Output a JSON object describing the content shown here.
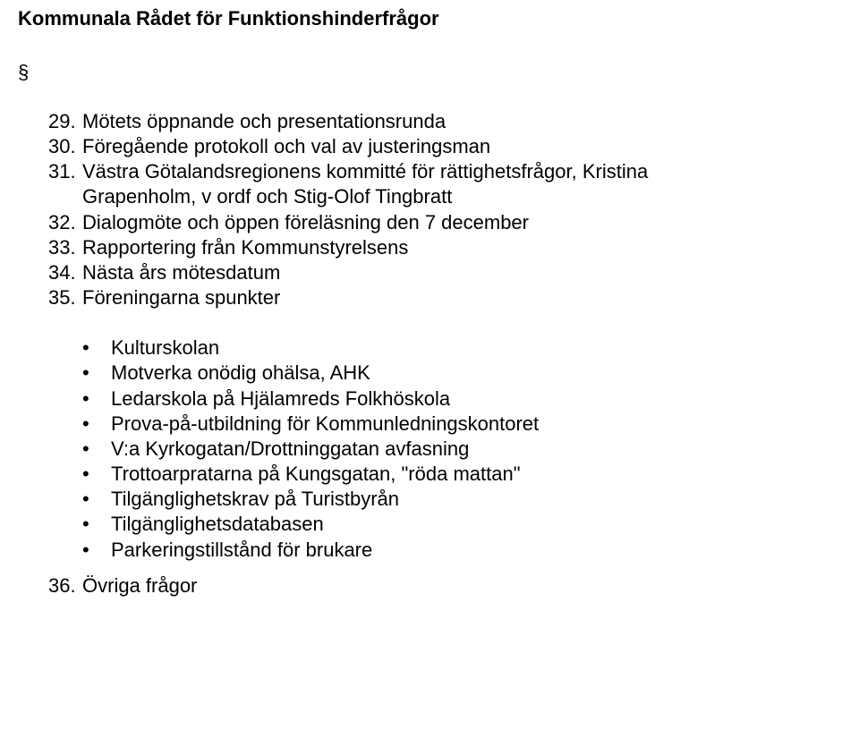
{
  "title": "Kommunala Rådet för Funktionshinderfrågor",
  "section_symbol": "§",
  "agenda": [
    {
      "num": "29.",
      "label": "Mötets öppnande och presentationsrunda"
    },
    {
      "num": "30.",
      "label": "Föregående protokoll och val av justeringsman"
    },
    {
      "num": "31.",
      "label": "Västra Götalandsregionens kommitté för rättighetsfrågor, Kristina"
    },
    {
      "num": "",
      "label": "Grapenholm, v ordf och Stig-Olof Tingbratt"
    },
    {
      "num": "32.",
      "label": "Dialogmöte och öppen föreläsning den 7 december"
    },
    {
      "num": "33.",
      "label": "Rapportering från Kommunstyrelsens"
    },
    {
      "num": "34.",
      "label": "Nästa års mötesdatum"
    },
    {
      "num": "35.",
      "label": "Föreningarna spunkter"
    }
  ],
  "bullets": [
    "Kulturskolan",
    "Motverka onödig ohälsa, AHK",
    "Ledarskola på Hjälamreds Folkhöskola",
    "Prova-på-utbildning för Kommunledningskontoret",
    "V:a Kyrkogatan/Drottninggatan avfasning",
    "Trottoarpratarna på Kungsgatan, \"röda mattan\"",
    "Tilgänglighetskrav på Turistbyrån",
    "Tilgänglighetsdatabasen",
    "Parkeringstillstånd för brukare"
  ],
  "final_item": {
    "num": "36.",
    "label": "Övriga frågor"
  },
  "colors": {
    "background": "#ffffff",
    "text": "#000000"
  },
  "typography": {
    "font_family": "Arial",
    "title_fontsize_pt": 17,
    "body_fontsize_pt": 17,
    "title_weight": "bold"
  }
}
